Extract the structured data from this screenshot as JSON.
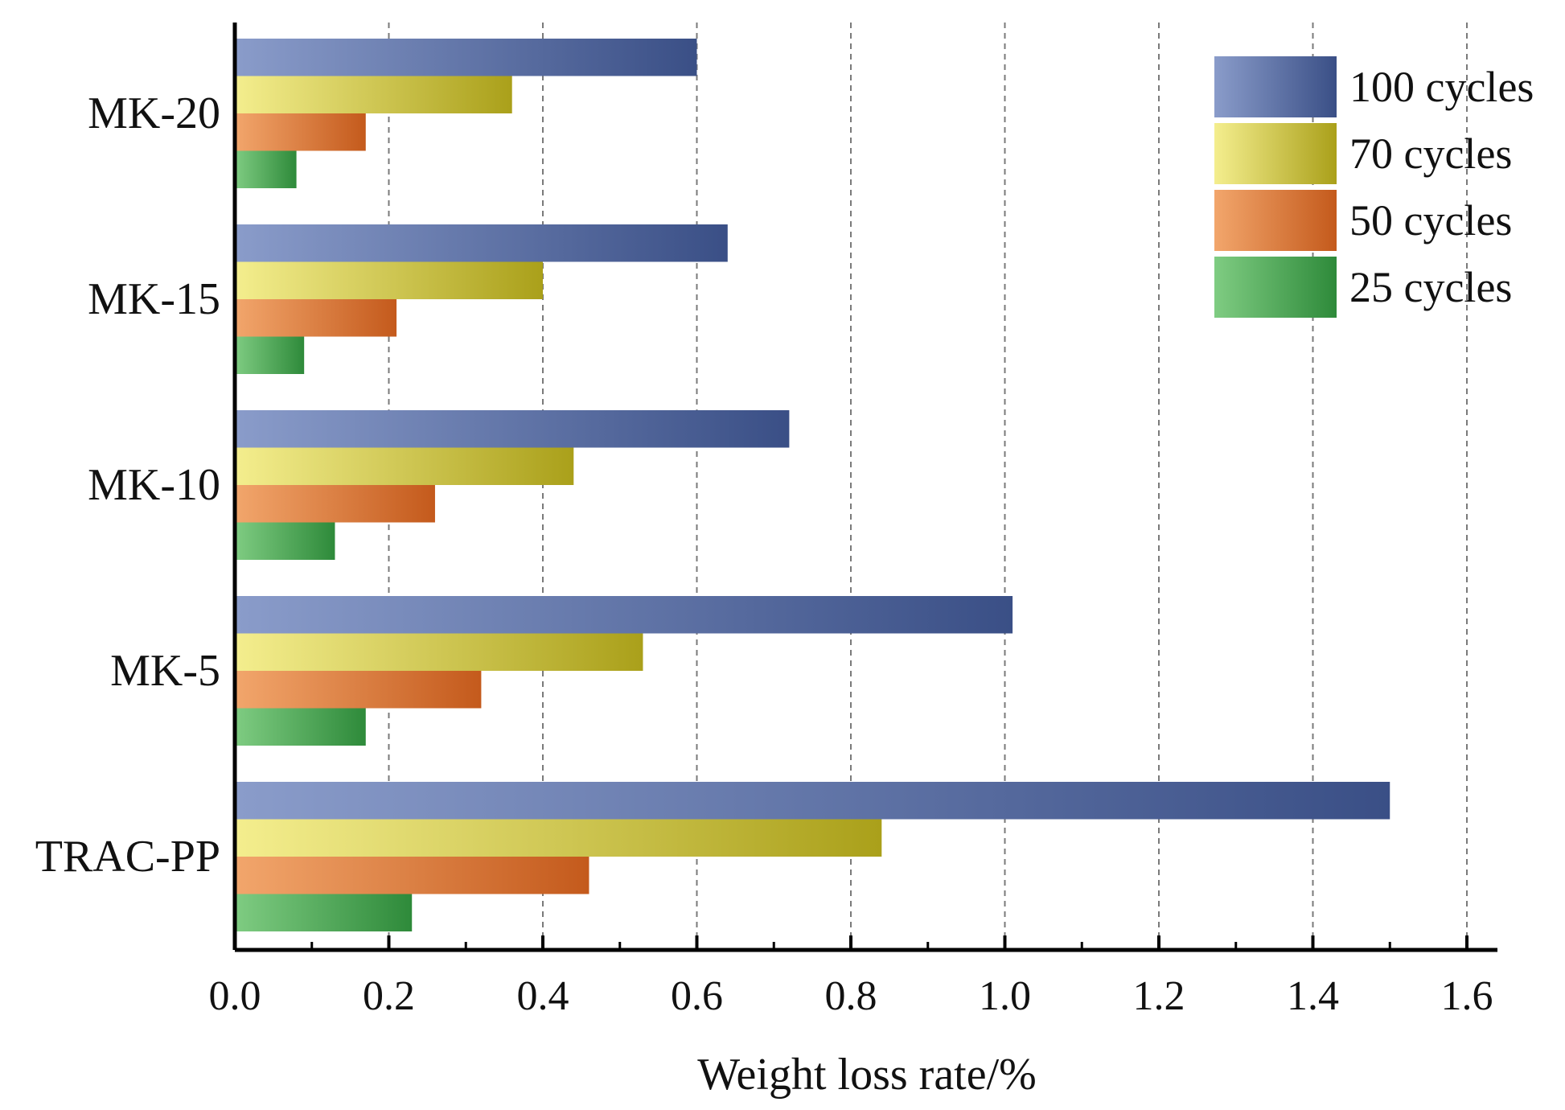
{
  "chart_data": {
    "type": "bar",
    "orientation": "horizontal",
    "title": "",
    "xlabel": "Weight loss rate/%",
    "ylabel": "",
    "xlim": [
      0,
      1.6
    ],
    "xticks": [
      "0.0",
      "0.2",
      "0.4",
      "0.6",
      "0.8",
      "1.0",
      "1.2",
      "1.4",
      "1.6"
    ],
    "grid": "vertical dashed",
    "legend_position": "top-right",
    "categories": [
      "MK-20",
      "MK-15",
      "MK-10",
      "MK-5",
      "TRAC-PP"
    ],
    "series": [
      {
        "name": "100 cycles",
        "values": [
          0.6,
          0.64,
          0.72,
          1.01,
          1.5
        ],
        "color_light": "#8A9CCA",
        "color_dark": "#3A4F86"
      },
      {
        "name": "70 cycles",
        "values": [
          0.36,
          0.4,
          0.44,
          0.53,
          0.84
        ],
        "color_light": "#F4EE8E",
        "color_dark": "#AAA01A"
      },
      {
        "name": "50 cycles",
        "values": [
          0.17,
          0.21,
          0.26,
          0.32,
          0.46
        ],
        "color_light": "#F2A66C",
        "color_dark": "#C45A1C"
      },
      {
        "name": "25 cycles",
        "values": [
          0.08,
          0.09,
          0.13,
          0.17,
          0.23
        ],
        "color_light": "#7FCC82",
        "color_dark": "#2E8A3A"
      }
    ]
  }
}
